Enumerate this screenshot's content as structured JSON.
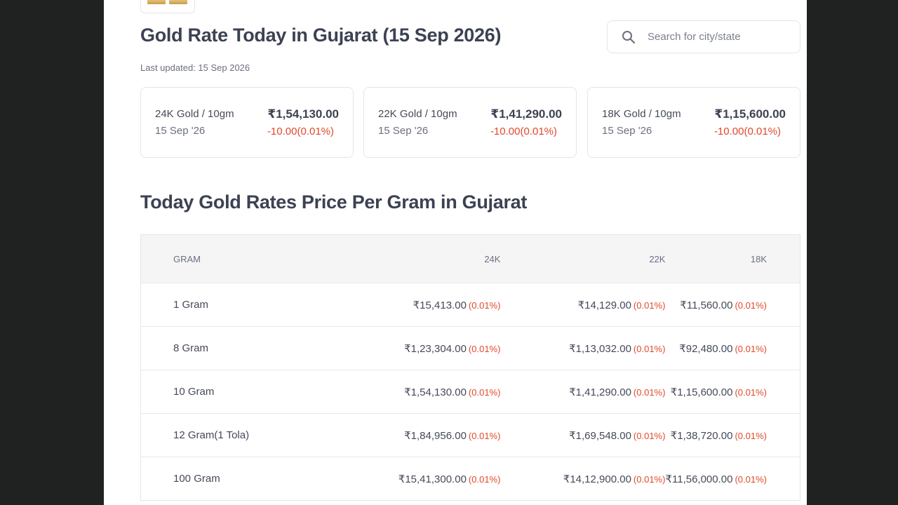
{
  "page": {
    "title": "Gold Rate Today in Gujarat (15 Sep 2026)",
    "last_updated": "Last updated: 15 Sep 2026"
  },
  "search": {
    "placeholder": "Search for city/state",
    "icon": "search-icon"
  },
  "cards": [
    {
      "label": "24K Gold / 10gm",
      "date": "15 Sep '26",
      "price": "₹1,54,130.00",
      "change": "-10.00(0.01%)"
    },
    {
      "label": "22K Gold / 10gm",
      "date": "15 Sep '26",
      "price": "₹1,41,290.00",
      "change": "-10.00(0.01%)"
    },
    {
      "label": "18K Gold / 10gm",
      "date": "15 Sep '26",
      "price": "₹1,15,600.00",
      "change": "-10.00(0.01%)"
    }
  ],
  "section": {
    "title": "Today Gold Rates Price Per Gram in Gujarat"
  },
  "table": {
    "headers": [
      "GRAM",
      "24K",
      "22K",
      "18K"
    ],
    "rows": [
      {
        "gram": "1 Gram",
        "k24": "₹15,413.00",
        "k24_pct": "(0.01%)",
        "k22": "₹14,129.00",
        "k22_pct": "(0.01%)",
        "k18": "₹11,560.00",
        "k18_pct": "(0.01%)"
      },
      {
        "gram": "8 Gram",
        "k24": "₹1,23,304.00",
        "k24_pct": "(0.01%)",
        "k22": "₹1,13,032.00",
        "k22_pct": "(0.01%)",
        "k18": "₹92,480.00",
        "k18_pct": "(0.01%)"
      },
      {
        "gram": "10 Gram",
        "k24": "₹1,54,130.00",
        "k24_pct": "(0.01%)",
        "k22": "₹1,41,290.00",
        "k22_pct": "(0.01%)",
        "k18": "₹1,15,600.00",
        "k18_pct": "(0.01%)"
      },
      {
        "gram": "12 Gram(1 Tola)",
        "k24": "₹1,84,956.00",
        "k24_pct": "(0.01%)",
        "k22": "₹1,69,548.00",
        "k22_pct": "(0.01%)",
        "k18": "₹1,38,720.00",
        "k18_pct": "(0.01%)"
      },
      {
        "gram": "100 Gram",
        "k24": "₹15,41,300.00",
        "k24_pct": "(0.01%)",
        "k22": "₹14,12,900.00",
        "k22_pct": "(0.01%)",
        "k18": "₹11,56,000.00",
        "k18_pct": "(0.01%)"
      }
    ]
  },
  "colors": {
    "negative_change": "#e0492b",
    "side_background": "#202221",
    "heading": "#3c4252"
  }
}
